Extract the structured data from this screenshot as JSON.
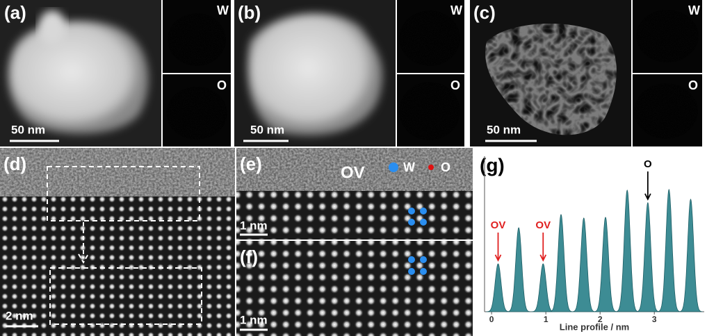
{
  "panels": {
    "a": {
      "label": "(a)",
      "scale": "50 nm",
      "map_w": "W",
      "map_o": "O"
    },
    "b": {
      "label": "(b)",
      "scale": "50 nm",
      "map_w": "W",
      "map_o": "O"
    },
    "c": {
      "label": "(c)",
      "scale": "50 nm",
      "map_w": "W",
      "map_o": "O"
    },
    "d": {
      "label": "(d)",
      "scale": "2 nm"
    },
    "e": {
      "label": "(e)",
      "annotation": "OV",
      "legend": [
        "W",
        "O"
      ],
      "scale": "1 nm"
    },
    "f": {
      "label": "(f)",
      "scale": "1 nm"
    }
  },
  "chart_data": {
    "type": "area",
    "label": "(g)",
    "xlabel": "Line profile / nm",
    "xlim": [
      -0.13,
      3.92
    ],
    "xticks": [
      0,
      1,
      2,
      3
    ],
    "ylim": [
      0,
      200
    ],
    "color": "#3d8c94",
    "peaks": {
      "x": [
        0.12,
        0.5,
        0.95,
        1.28,
        1.7,
        2.1,
        2.5,
        2.88,
        3.27,
        3.67
      ],
      "values": [
        69,
        121,
        69,
        140,
        135,
        136,
        175,
        157,
        176,
        162
      ]
    },
    "annotations": [
      {
        "text": "OV",
        "x": 0.12,
        "color": "#e02020"
      },
      {
        "text": "OV",
        "x": 0.95,
        "color": "#e02020"
      },
      {
        "text": "O",
        "x": 2.88,
        "color": "#000000"
      }
    ]
  }
}
